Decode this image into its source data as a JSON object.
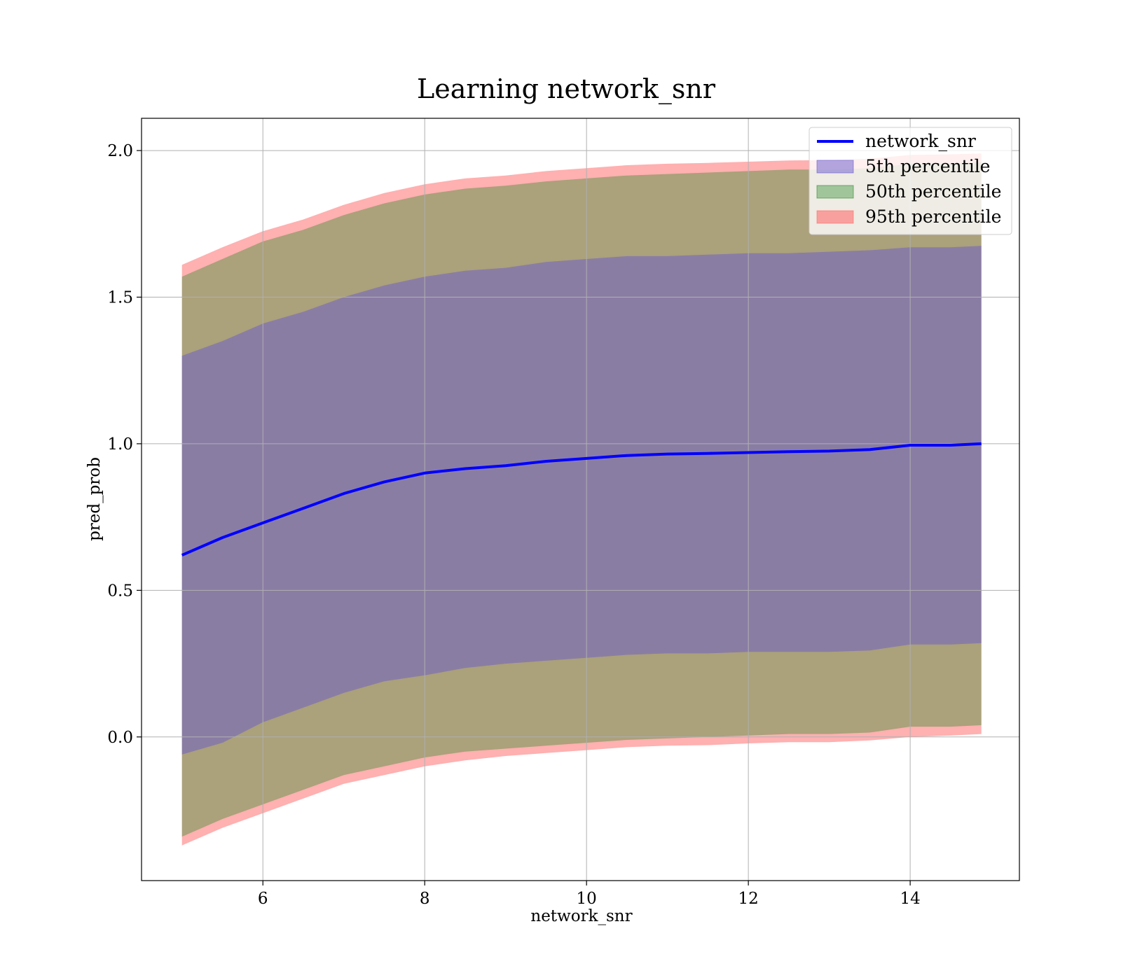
{
  "chart_data": {
    "type": "line",
    "title": "Learning network_snr",
    "xlabel": "network_snr",
    "ylabel": "pred_prob",
    "xlim": [
      4.5,
      15.35
    ],
    "ylim": [
      -0.49,
      2.11
    ],
    "xticks": [
      6,
      8,
      10,
      12,
      14
    ],
    "xtick_labels": [
      "6",
      "8",
      "10",
      "12",
      "14"
    ],
    "yticks": [
      0.0,
      0.5,
      1.0,
      1.5,
      2.0
    ],
    "ytick_labels": [
      "0.0",
      "0.5",
      "1.0",
      "1.5",
      "2.0"
    ],
    "grid": true,
    "legend_position": "top-right",
    "x": [
      5.0,
      5.5,
      6.0,
      6.5,
      7.0,
      7.5,
      8.0,
      8.5,
      9.0,
      9.5,
      10.0,
      10.5,
      11.0,
      11.5,
      12.0,
      12.5,
      13.0,
      13.5,
      14.0,
      14.5,
      14.88
    ],
    "series": [
      {
        "name": "network_snr",
        "kind": "line",
        "color": "#0000ff",
        "values": [
          0.62,
          0.68,
          0.73,
          0.78,
          0.83,
          0.87,
          0.9,
          0.915,
          0.925,
          0.94,
          0.95,
          0.96,
          0.965,
          0.967,
          0.97,
          0.973,
          0.975,
          0.98,
          0.995,
          0.995,
          1.0
        ]
      },
      {
        "name": "5th percentile",
        "kind": "band",
        "color": "#6a5acd",
        "lower": [
          -0.06,
          -0.02,
          0.05,
          0.1,
          0.15,
          0.19,
          0.21,
          0.235,
          0.25,
          0.26,
          0.27,
          0.28,
          0.285,
          0.285,
          0.29,
          0.29,
          0.29,
          0.295,
          0.315,
          0.315,
          0.32
        ],
        "upper": [
          1.3,
          1.35,
          1.41,
          1.45,
          1.5,
          1.54,
          1.57,
          1.59,
          1.6,
          1.62,
          1.63,
          1.64,
          1.64,
          1.645,
          1.65,
          1.65,
          1.655,
          1.66,
          1.67,
          1.67,
          1.675
        ]
      },
      {
        "name": "50th percentile",
        "kind": "band",
        "color": "#2e8b2e",
        "lower": [
          -0.34,
          -0.28,
          -0.23,
          -0.18,
          -0.13,
          -0.1,
          -0.07,
          -0.05,
          -0.04,
          -0.03,
          -0.02,
          -0.01,
          -0.005,
          0.0,
          0.005,
          0.01,
          0.01,
          0.015,
          0.035,
          0.035,
          0.04
        ],
        "upper": [
          1.57,
          1.63,
          1.69,
          1.73,
          1.78,
          1.82,
          1.85,
          1.87,
          1.88,
          1.895,
          1.905,
          1.915,
          1.92,
          1.925,
          1.93,
          1.935,
          1.935,
          1.94,
          1.955,
          1.955,
          1.96
        ]
      },
      {
        "name": "95th percentile",
        "kind": "band",
        "color": "#ff6e6e",
        "lower": [
          -0.37,
          -0.31,
          -0.26,
          -0.21,
          -0.16,
          -0.13,
          -0.1,
          -0.08,
          -0.065,
          -0.055,
          -0.045,
          -0.035,
          -0.03,
          -0.028,
          -0.022,
          -0.018,
          -0.018,
          -0.012,
          0.0,
          0.005,
          0.01
        ],
        "upper": [
          1.61,
          1.67,
          1.725,
          1.765,
          1.815,
          1.855,
          1.885,
          1.905,
          1.915,
          1.93,
          1.94,
          1.95,
          1.955,
          1.958,
          1.962,
          1.966,
          1.968,
          1.972,
          1.985,
          1.987,
          1.99
        ]
      }
    ]
  }
}
